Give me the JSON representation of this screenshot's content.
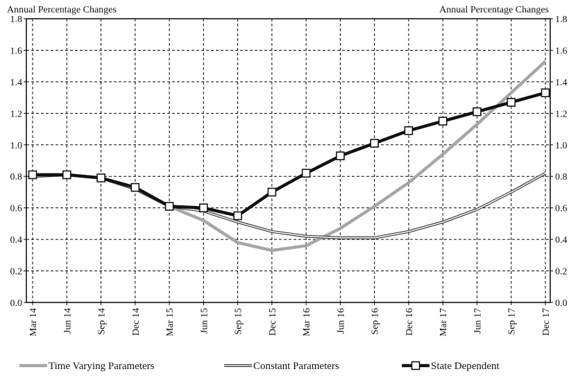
{
  "chart_data": {
    "type": "line",
    "left_axis_label": "Annual Percentage Changes",
    "right_axis_label": "Annual Percentage Changes",
    "x": [
      "Mar 14",
      "Jun 14",
      "Sep 14",
      "Dec 14",
      "Mar 15",
      "Jun 15",
      "Sep 15",
      "Dec 15",
      "Mar 16",
      "Jun 16",
      "Sep 16",
      "Dec 16",
      "Mar 17",
      "Jun 17",
      "Sep 17",
      "Dec 17"
    ],
    "ylim": [
      0.0,
      1.8
    ],
    "yticks": [
      "0.0",
      "0.2",
      "0.4",
      "0.6",
      "0.8",
      "1.0",
      "1.2",
      "1.4",
      "1.6",
      "1.8"
    ],
    "grid": true,
    "legend_position": "bottom",
    "series": [
      {
        "name": "Time Varying Parameters",
        "color": "#a6a6a6",
        "style": "thick-solid",
        "values": [
          0.8,
          0.81,
          0.79,
          0.72,
          0.61,
          0.52,
          0.38,
          0.33,
          0.36,
          0.47,
          0.61,
          0.76,
          0.94,
          1.13,
          1.33,
          1.53
        ]
      },
      {
        "name": "Constant Parameters",
        "color": "#333333",
        "style": "double-line",
        "values": [
          0.8,
          0.81,
          0.79,
          0.72,
          0.61,
          0.58,
          0.51,
          0.45,
          0.42,
          0.41,
          0.41,
          0.45,
          0.51,
          0.59,
          0.7,
          0.82
        ]
      },
      {
        "name": "State Dependent",
        "color": "#111111",
        "style": "thick-solid-square-markers",
        "values": [
          0.81,
          0.81,
          0.79,
          0.73,
          0.61,
          0.6,
          0.55,
          0.7,
          0.82,
          0.93,
          1.01,
          1.09,
          1.15,
          1.21,
          1.27,
          1.33
        ]
      }
    ]
  }
}
